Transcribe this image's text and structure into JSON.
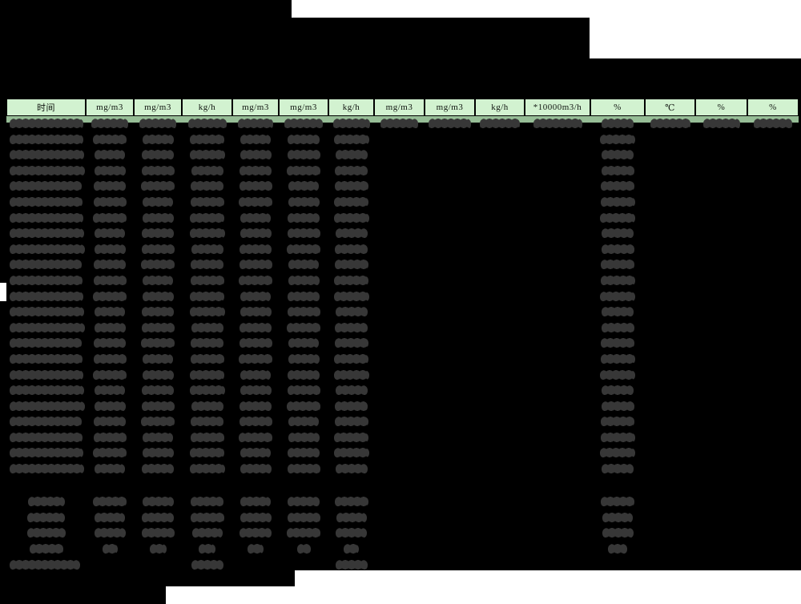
{
  "colors": {
    "page_bg": "#ffffff",
    "redaction": "#000000",
    "blob": "#373737",
    "header_bg": "#d2f2d0",
    "name_row_bg": "#96bd96"
  },
  "redaction_note": "Title block, item names, timestamps and all numeric values are blacked out; only unit headers are legible",
  "table": {
    "unit_header": [
      "时间",
      "mg/m3",
      "mg/m3",
      "kg/h",
      "mg/m3",
      "mg/m3",
      "kg/h",
      "mg/m3",
      "mg/m3",
      "kg/h",
      "*10000m3/h",
      "%",
      "℃",
      "%",
      "%"
    ],
    "column_count": 15,
    "name_row": {
      "filled_columns": [
        1,
        2,
        3,
        4,
        5,
        6,
        7,
        8,
        9,
        10,
        11,
        12,
        13,
        14,
        15
      ]
    },
    "hourly_rows": {
      "count": 22,
      "filled_columns": [
        1,
        2,
        3,
        4,
        5,
        6,
        7,
        12
      ]
    },
    "summary_rows": [
      {
        "style": "normal",
        "filled_columns": [
          1,
          2,
          3,
          4,
          5,
          6,
          7,
          12
        ]
      },
      {
        "style": "normal",
        "filled_columns": [
          1,
          2,
          3,
          4,
          5,
          6,
          7,
          12
        ]
      },
      {
        "style": "normal",
        "filled_columns": [
          1,
          2,
          3,
          4,
          5,
          6,
          7,
          12
        ]
      },
      {
        "style": "small",
        "filled_columns": [
          1,
          2,
          3,
          4,
          5,
          6,
          7,
          12
        ]
      }
    ],
    "total_row": {
      "style": "footer",
      "filled_columns": [
        1,
        4,
        7
      ]
    }
  }
}
